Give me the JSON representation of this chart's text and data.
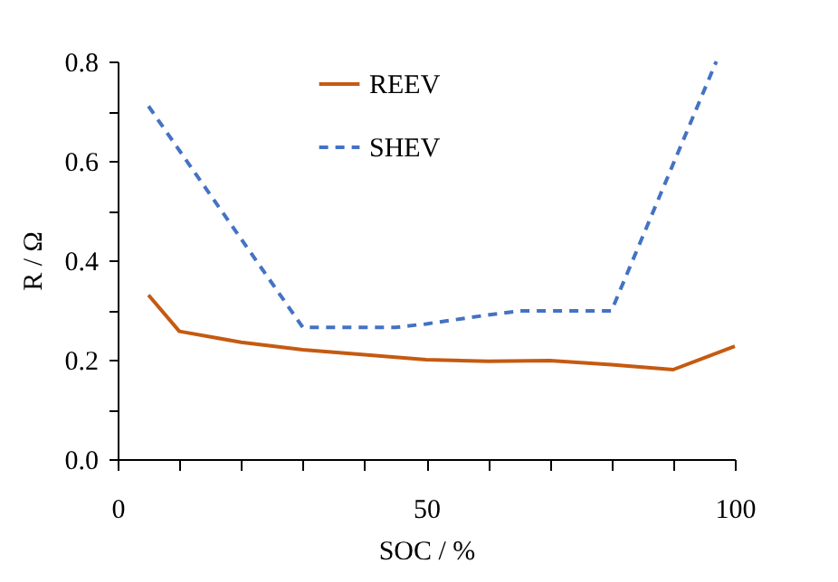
{
  "chart_data": {
    "type": "line",
    "xlabel": "SOC / %",
    "ylabel": "R / Ω",
    "xlim": [
      0,
      100
    ],
    "ylim": [
      0,
      0.8
    ],
    "xticks": [
      0,
      {
        "value": 10,
        "label": null
      },
      {
        "value": 20,
        "label": null
      },
      {
        "value": 30,
        "label": null
      },
      {
        "value": 40,
        "label": null
      },
      50,
      {
        "value": 60,
        "label": null
      },
      {
        "value": 70,
        "label": null
      },
      {
        "value": 80,
        "label": null
      },
      {
        "value": 90,
        "label": null
      },
      100
    ],
    "yticks": [
      {
        "value": 0,
        "label": "0.0"
      },
      {
        "value": 0.1,
        "label": null
      },
      0.2,
      {
        "value": 0.3,
        "label": null
      },
      0.4,
      {
        "value": 0.5,
        "label": null
      },
      0.6,
      {
        "value": 0.7,
        "label": null
      },
      0.8
    ],
    "grid": false,
    "legend": "top",
    "marker": "none",
    "series": [
      {
        "name": "REEV",
        "color": "#c55a11",
        "line_style": "solid",
        "x": [
          5,
          10,
          20,
          30,
          40,
          50,
          60,
          70,
          80,
          90,
          100
        ],
        "values": [
          0.33,
          0.257,
          0.235,
          0.22,
          0.21,
          0.2,
          0.197,
          0.198,
          0.19,
          0.18,
          0.227
        ]
      },
      {
        "name": "SHEV",
        "color": "#4472c4",
        "line_style": "dashed",
        "x": [
          5,
          30,
          45,
          50,
          60,
          65,
          80,
          97
        ],
        "values": [
          0.71,
          0.265,
          0.265,
          0.272,
          0.29,
          0.298,
          0.298,
          0.8
        ]
      }
    ]
  }
}
